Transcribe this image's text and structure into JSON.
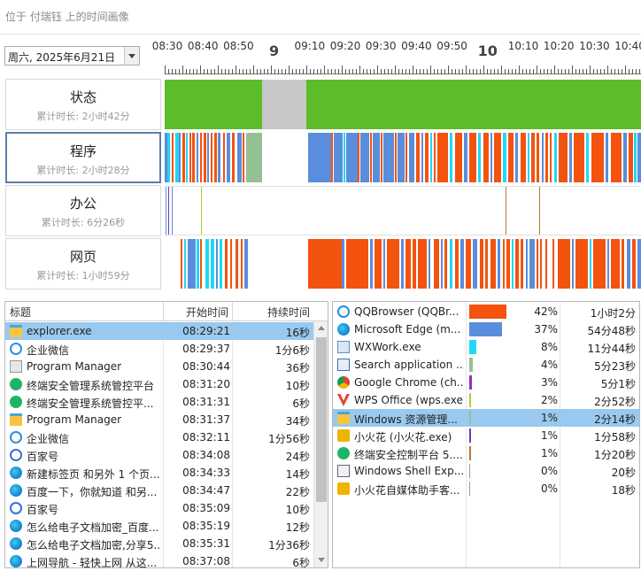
{
  "header": {
    "title": "位于 付瑞钰 上的时间画像"
  },
  "date_picker": {
    "value": "周六, 2025年6月21日"
  },
  "ruler": {
    "labels": [
      "08:30",
      "08:40",
      "08:50",
      "9",
      "09:10",
      "09:20",
      "09:30",
      "09:40",
      "09:50",
      "10",
      "10:10",
      "10:20",
      "10:30",
      "10:40"
    ]
  },
  "tracks": [
    {
      "name": "状态",
      "duration": "累计时长: 2小时42分"
    },
    {
      "name": "程序",
      "duration": "累计时长: 2小时28分"
    },
    {
      "name": "办公",
      "duration": "累计时长: 6分26秒"
    },
    {
      "name": "网页",
      "duration": "累计时长: 1小时59分"
    }
  ],
  "colors": {
    "active": "#5cbd29",
    "idle": "#c8c8c8",
    "browser": "#f3530e",
    "edge": "#5a8ddb",
    "wxwork": "#21d7f5",
    "folder": "#93c195",
    "selected_row": "#99c9ef"
  },
  "left_table": {
    "headers": {
      "title": "标题",
      "start": "开始时间",
      "duration": "持续时间"
    },
    "rows": [
      {
        "icon": "folder-icon",
        "title": "explorer.exe",
        "start": "08:29:21",
        "duration": "16秒",
        "selected": true
      },
      {
        "icon": "wecom-icon",
        "title": "企业微信",
        "start": "08:29:37",
        "duration": "1分6秒"
      },
      {
        "icon": "app-window-icon",
        "title": "Program Manager",
        "start": "08:30:44",
        "duration": "36秒"
      },
      {
        "icon": "shield-icon",
        "title": "终端安全管理系统管控平台",
        "start": "08:31:20",
        "duration": "10秒"
      },
      {
        "icon": "shield-icon",
        "title": "终端安全管理系统管控平...",
        "start": "08:31:31",
        "duration": "6秒"
      },
      {
        "icon": "folder-icon",
        "title": "Program Manager",
        "start": "08:31:37",
        "duration": "34秒"
      },
      {
        "icon": "wecom-icon",
        "title": "企业微信",
        "start": "08:32:11",
        "duration": "1分56秒"
      },
      {
        "icon": "baidu-icon",
        "title": "百家号",
        "start": "08:34:08",
        "duration": "24秒"
      },
      {
        "icon": "edge-icon",
        "title": "新建标签页 和另外 1 个页...",
        "start": "08:34:33",
        "duration": "14秒"
      },
      {
        "icon": "edge-icon",
        "title": "百度一下，你就知道 和另...",
        "start": "08:34:47",
        "duration": "22秒"
      },
      {
        "icon": "baidu-icon",
        "title": "百家号",
        "start": "08:35:09",
        "duration": "10秒"
      },
      {
        "icon": "edge-icon",
        "title": "怎么给电子文档加密_百度...",
        "start": "08:35:19",
        "duration": "12秒"
      },
      {
        "icon": "edge-icon",
        "title": "怎么给电子文档加密,分享5...",
        "start": "08:35:31",
        "duration": "1分36秒"
      },
      {
        "icon": "edge-icon",
        "title": "上网导航 - 轻快上网 从这...",
        "start": "08:37:08",
        "duration": "6秒"
      }
    ]
  },
  "right_table": {
    "rows": [
      {
        "icon": "qqbrowser-icon",
        "name": "QQBrowser (QQBr...",
        "percent": "42%",
        "time": "1小时2分",
        "bar_fraction": 0.42,
        "color": "#f3530e"
      },
      {
        "icon": "edge-icon",
        "name": "Microsoft Edge (m...",
        "percent": "37%",
        "time": "54分48秒",
        "bar_fraction": 0.37,
        "color": "#5a8ddb"
      },
      {
        "icon": "wxwork-icon",
        "name": "WXWork.exe",
        "percent": "8%",
        "time": "11分44秒",
        "bar_fraction": 0.08,
        "color": "#21d7f5"
      },
      {
        "icon": "search-app-icon",
        "name": "Search application ...",
        "percent": "4%",
        "time": "5分23秒",
        "bar_fraction": 0.04,
        "color": "#93c195"
      },
      {
        "icon": "chrome-icon",
        "name": "Google Chrome (ch...",
        "percent": "3%",
        "time": "5分1秒",
        "bar_fraction": 0.03,
        "color": "#9b2fae"
      },
      {
        "icon": "wps-icon",
        "name": "WPS Office (wps.exe)",
        "percent": "2%",
        "time": "2分52秒",
        "bar_fraction": 0.02,
        "color": "#b5cc3d"
      },
      {
        "icon": "folder-icon",
        "name": "Windows 资源管理...",
        "percent": "1%",
        "time": "2分14秒",
        "bar_fraction": 0.01,
        "color": "#93c195",
        "selected": true
      },
      {
        "icon": "xiaohuohua-icon",
        "name": "小火花 (小火花.exe)",
        "percent": "1%",
        "time": "1分58秒",
        "bar_fraction": 0.01,
        "color": "#6c3ca8"
      },
      {
        "icon": "shield-icon",
        "name": "终端安全控制平台 5....",
        "percent": "1%",
        "time": "1分20秒",
        "bar_fraction": 0.01,
        "color": "#b57a36"
      },
      {
        "icon": "shell-icon",
        "name": "Windows Shell Exp...",
        "percent": "0%",
        "time": "20秒",
        "bar_fraction": 0.0,
        "color": "#999999"
      },
      {
        "icon": "xiaohuohua-icon",
        "name": "小火花自媒体助手客...",
        "percent": "0%",
        "time": "18秒",
        "bar_fraction": 0.0,
        "color": "#999999"
      }
    ]
  }
}
